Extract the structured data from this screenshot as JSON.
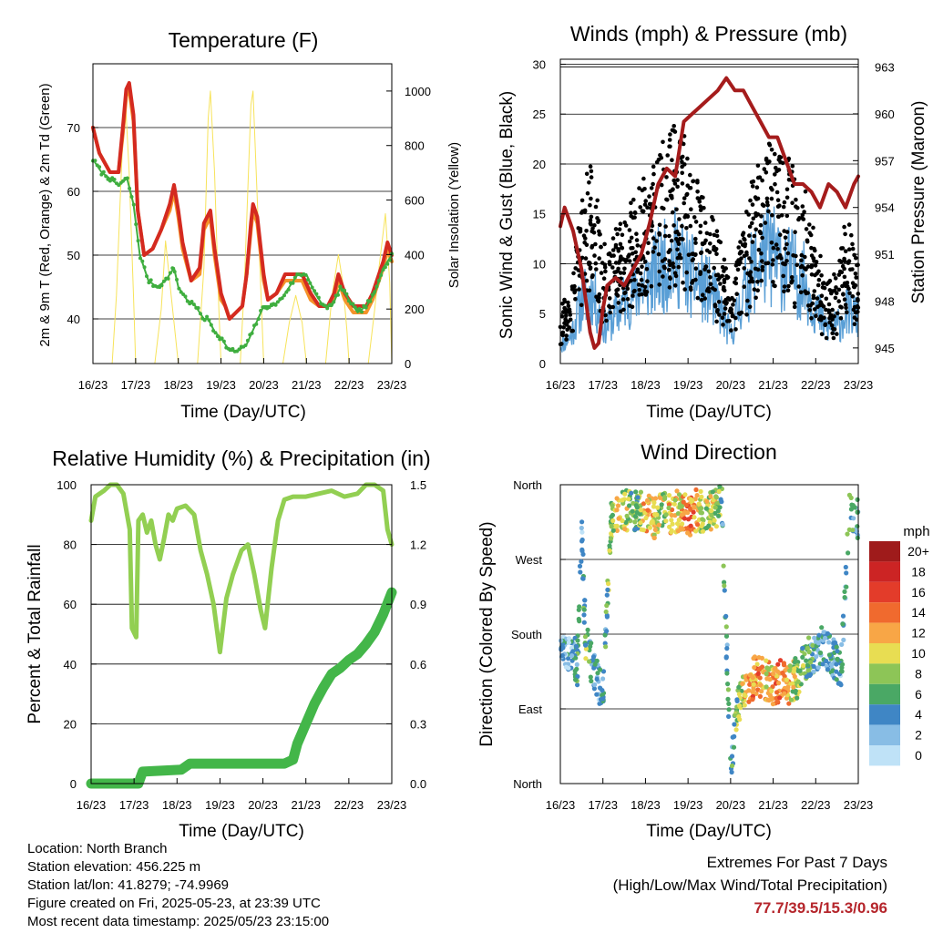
{
  "footer": {
    "location": "Location: North Branch",
    "elevation": "Station elevation: 456.225 m",
    "latlon": "Station lat/lon: 41.8279; -74.9969",
    "created": "Figure created on Fri, 2025-05-23, at 23:39 UTC",
    "recent": "Most recent data timestamp: 2025/05/23 23:15:00",
    "extremes_title": "Extremes For Past 7 Days",
    "extremes_sub": "(High/Low/Max Wind/Total Precipitation)",
    "extremes_value": "77.7/39.5/15.3/0.96"
  },
  "colors": {
    "temp2m": "#d42a20",
    "temp9m": "#f5922a",
    "dewpoint": "#3fae3f",
    "solar": "#f7e35a",
    "sonic_wind": "#5a9fd6",
    "gust": "#000000",
    "pressure": "#a51c1c",
    "rh": "#92cf52",
    "precip": "#43b649",
    "extremes": "#b5252b"
  },
  "chart_data": [
    {
      "type": "line",
      "title": "Temperature (F)",
      "xlabel": "Time (Day/UTC)",
      "ylabel": "2m & 9m T (Red, Orange) & 2m Td (Green)",
      "y2label": "Solar Insolation (Yellow)",
      "xticks": [
        "16/23",
        "17/23",
        "18/23",
        "19/23",
        "20/23",
        "21/23",
        "22/23",
        "23/23"
      ],
      "xlim": [
        0,
        7
      ],
      "ylim": [
        33,
        80
      ],
      "yticks": [
        40,
        50,
        60,
        70
      ],
      "y2lim": [
        0,
        1100
      ],
      "y2ticks": [
        0,
        200,
        400,
        600,
        800,
        1000
      ],
      "grid": true,
      "series": [
        {
          "name": "2m T",
          "axis": "left",
          "color": "#d42a20",
          "x": [
            0,
            0.15,
            0.4,
            0.6,
            0.7,
            0.78,
            0.85,
            0.95,
            1.05,
            1.2,
            1.4,
            1.6,
            1.8,
            1.9,
            2.0,
            2.1,
            2.3,
            2.5,
            2.6,
            2.75,
            2.85,
            3.0,
            3.1,
            3.2,
            3.35,
            3.5,
            3.6,
            3.7,
            3.75,
            3.85,
            4.0,
            4.1,
            4.3,
            4.5,
            4.7,
            4.9,
            5.1,
            5.3,
            5.5,
            5.65,
            5.75,
            5.9,
            6.1,
            6.3,
            6.4,
            6.55,
            6.7,
            6.8,
            6.9,
            7.0
          ],
          "y": [
            70,
            66,
            63,
            63,
            70,
            76,
            77,
            72,
            57,
            50,
            51,
            54,
            58,
            61,
            57,
            52,
            46,
            48,
            55,
            57,
            51,
            44,
            42,
            40,
            41,
            42,
            47,
            55,
            58,
            56,
            47,
            43,
            44,
            47,
            47,
            47,
            44,
            42,
            42,
            44,
            47,
            44,
            42,
            42,
            42,
            44,
            47,
            49,
            52,
            50
          ]
        },
        {
          "name": "9m T",
          "axis": "left",
          "color": "#f5922a",
          "x": [
            0,
            0.15,
            0.4,
            0.6,
            0.7,
            0.78,
            0.85,
            0.95,
            1.05,
            1.2,
            1.4,
            1.6,
            1.8,
            1.9,
            2.0,
            2.1,
            2.3,
            2.5,
            2.6,
            2.75,
            2.85,
            3.0,
            3.1,
            3.2,
            3.35,
            3.5,
            3.6,
            3.7,
            3.75,
            3.85,
            4.0,
            4.1,
            4.3,
            4.5,
            4.7,
            4.9,
            5.1,
            5.3,
            5.5,
            5.65,
            5.75,
            5.9,
            6.1,
            6.3,
            6.4,
            6.55,
            6.7,
            6.8,
            6.9,
            7.0
          ],
          "y": [
            70,
            66,
            63,
            63,
            69,
            75,
            76,
            71,
            57,
            50,
            51,
            54,
            57,
            60,
            56,
            51,
            46,
            47,
            54,
            56,
            50,
            43,
            42,
            40,
            41,
            42,
            47,
            54,
            57,
            55,
            46,
            43,
            44,
            46,
            46,
            46,
            43,
            42,
            42,
            43,
            46,
            43,
            41,
            41,
            41,
            43,
            46,
            48,
            51,
            49
          ]
        },
        {
          "name": "2m Td",
          "axis": "left",
          "color": "#3fae3f",
          "x": [
            0,
            0.2,
            0.4,
            0.6,
            0.8,
            0.95,
            1.1,
            1.3,
            1.5,
            1.7,
            1.9,
            2.0,
            2.2,
            2.4,
            2.6,
            2.7,
            2.85,
            3.0,
            3.2,
            3.4,
            3.6,
            3.8,
            4.0,
            4.2,
            4.4,
            4.6,
            4.8,
            5.0,
            5.2,
            5.4,
            5.6,
            5.8,
            6.0,
            6.2,
            6.4,
            6.6,
            6.8,
            7.0
          ],
          "y": [
            65,
            63,
            62,
            61,
            62,
            58,
            50,
            46,
            45,
            46,
            48,
            45,
            43,
            42,
            40,
            40,
            38,
            37,
            35,
            35,
            36,
            39,
            42,
            42,
            43,
            45,
            47,
            47,
            44,
            42,
            42,
            45,
            43,
            41,
            42,
            44,
            48,
            50
          ]
        },
        {
          "name": "Solar Insolation",
          "axis": "right",
          "color": "#f7e35a",
          "x": [
            0,
            0.45,
            0.55,
            0.65,
            0.75,
            0.85,
            0.95,
            1.0,
            1.45,
            1.6,
            1.7,
            1.8,
            1.9,
            2.0,
            2.45,
            2.6,
            2.7,
            2.75,
            2.85,
            2.95,
            3.0,
            3.45,
            3.55,
            3.7,
            3.75,
            3.85,
            3.95,
            4.0,
            4.45,
            4.6,
            4.75,
            4.9,
            5.0,
            5.45,
            5.6,
            5.75,
            5.85,
            5.95,
            6.0,
            6.45,
            6.6,
            6.7,
            6.85,
            6.95,
            7.0
          ],
          "y": [
            0,
            0,
            250,
            650,
            1000,
            700,
            250,
            0,
            0,
            200,
            450,
            300,
            150,
            0,
            0,
            350,
            900,
            1000,
            700,
            200,
            0,
            0,
            300,
            950,
            1000,
            600,
            200,
            0,
            0,
            150,
            250,
            150,
            0,
            0,
            250,
            400,
            300,
            120,
            0,
            0,
            200,
            350,
            550,
            300,
            0
          ]
        }
      ]
    },
    {
      "type": "scatter",
      "title": "Winds (mph) & Pressure (mb)",
      "xlabel": "Time (Day/UTC)",
      "ylabel": "Sonic Wind & Gust (Blue, Black)",
      "y2label": "Station Pressure (Maroon)",
      "xticks": [
        "16/23",
        "17/23",
        "18/23",
        "19/23",
        "20/23",
        "21/23",
        "22/23",
        "23/23"
      ],
      "xlim": [
        0,
        7
      ],
      "ylim": [
        0,
        30.5
      ],
      "yticks": [
        0,
        5,
        10,
        15,
        20,
        25,
        30
      ],
      "y2lim": [
        944.0,
        963.5
      ],
      "y2ticks": [
        945,
        948,
        951,
        954,
        957,
        960,
        963
      ],
      "grid": true,
      "series": [
        {
          "name": "Gust",
          "axis": "left",
          "color": "#000000",
          "x": [
            0,
            0.25,
            0.5,
            0.75,
            1.0,
            1.25,
            1.5,
            1.75,
            2.0,
            2.25,
            2.5,
            2.75,
            3.0,
            3.25,
            3.5,
            3.75,
            4.0,
            4.25,
            4.5,
            4.75,
            5.0,
            5.25,
            5.5,
            5.75,
            6.0,
            6.25,
            6.5,
            6.75,
            7.0
          ],
          "y": [
            3,
            6,
            14,
            17,
            9,
            10,
            12,
            14,
            15,
            17,
            19,
            21,
            17,
            15,
            12,
            10,
            5,
            10,
            15,
            17,
            19,
            18,
            16,
            14,
            9,
            6,
            7,
            12,
            8
          ]
        },
        {
          "name": "Sonic Wind",
          "axis": "left",
          "color": "#5a9fd6",
          "x": [
            0,
            0.25,
            0.5,
            0.75,
            1.0,
            1.25,
            1.5,
            1.75,
            2.0,
            2.25,
            2.5,
            2.75,
            3.0,
            3.25,
            3.5,
            3.75,
            4.0,
            4.25,
            4.5,
            4.75,
            5.0,
            5.25,
            5.5,
            5.75,
            6.0,
            6.25,
            6.5,
            6.75,
            7.0
          ],
          "y": [
            2,
            3,
            7,
            8,
            4,
            5,
            7,
            8,
            9,
            10,
            11,
            12,
            10,
            9,
            8,
            6,
            3,
            7,
            10,
            12,
            12,
            11,
            10,
            9,
            6,
            4,
            4,
            6,
            5
          ]
        },
        {
          "name": "Station Pressure",
          "axis": "right",
          "color": "#a51c1c",
          "x": [
            0,
            0.1,
            0.3,
            0.5,
            0.7,
            0.8,
            0.9,
            1.0,
            1.1,
            1.3,
            1.5,
            1.7,
            1.9,
            2.1,
            2.3,
            2.5,
            2.7,
            2.9,
            3.1,
            3.3,
            3.5,
            3.7,
            3.9,
            4.1,
            4.3,
            4.5,
            4.7,
            4.9,
            5.1,
            5.3,
            5.5,
            5.7,
            5.9,
            6.1,
            6.3,
            6.5,
            6.7,
            6.9,
            7.0
          ],
          "y": [
            952.8,
            954.0,
            952.5,
            950.0,
            946.0,
            945.0,
            945.3,
            947.5,
            949.0,
            949.5,
            949.0,
            950.0,
            951.0,
            953.0,
            955.5,
            956.5,
            956.0,
            959.5,
            960.0,
            960.5,
            961.0,
            961.5,
            962.3,
            961.5,
            961.5,
            960.5,
            959.5,
            958.5,
            958.5,
            957.0,
            955.5,
            955.5,
            955.0,
            954.0,
            955.5,
            955.0,
            954.0,
            955.5,
            956.0
          ]
        }
      ]
    },
    {
      "type": "line",
      "title": "Relative Humidity (%) & Precipitation (in)",
      "xlabel": "Time (Day/UTC)",
      "ylabel": "Percent & Total Rainfall",
      "xticks": [
        "16/23",
        "17/23",
        "18/23",
        "19/23",
        "20/23",
        "21/23",
        "22/23",
        "23/23"
      ],
      "xlim": [
        0,
        7
      ],
      "ylim": [
        0,
        100
      ],
      "yticks": [
        0,
        20,
        40,
        60,
        80,
        100
      ],
      "y2lim": [
        0,
        1.5
      ],
      "y2ticks": [
        "0.0",
        "0.3",
        "0.6",
        "0.9",
        "1.2",
        "1.5"
      ],
      "grid": true,
      "series": [
        {
          "name": "Relative Humidity",
          "axis": "left",
          "color": "#92cf52",
          "x": [
            0,
            0.1,
            0.3,
            0.45,
            0.6,
            0.75,
            0.9,
            0.95,
            1.05,
            1.1,
            1.2,
            1.3,
            1.4,
            1.5,
            1.6,
            1.7,
            1.8,
            1.9,
            2.0,
            2.2,
            2.4,
            2.55,
            2.7,
            2.85,
            3.0,
            3.15,
            3.3,
            3.5,
            3.65,
            3.8,
            3.95,
            4.05,
            4.2,
            4.35,
            4.5,
            4.7,
            5.0,
            5.3,
            5.6,
            5.9,
            6.2,
            6.4,
            6.6,
            6.8,
            6.9,
            7.0
          ],
          "y": [
            88,
            96,
            98,
            100,
            100,
            97,
            85,
            52,
            49,
            88,
            90,
            84,
            88,
            80,
            75,
            82,
            90,
            88,
            92,
            93,
            90,
            78,
            70,
            60,
            44,
            62,
            70,
            78,
            80,
            70,
            58,
            52,
            72,
            88,
            95,
            96,
            96,
            97,
            98,
            96,
            97,
            100,
            100,
            98,
            85,
            80
          ]
        },
        {
          "name": "Total Precipitation",
          "axis": "right",
          "color": "#43b649",
          "x": [
            0,
            1.1,
            1.2,
            2.1,
            2.3,
            4.5,
            4.7,
            4.8,
            5.0,
            5.2,
            5.4,
            5.6,
            5.8,
            6.0,
            6.2,
            6.4,
            6.6,
            6.8,
            7.0
          ],
          "y": [
            0,
            0,
            0.06,
            0.07,
            0.1,
            0.1,
            0.12,
            0.2,
            0.3,
            0.4,
            0.48,
            0.55,
            0.58,
            0.62,
            0.65,
            0.7,
            0.76,
            0.85,
            0.96
          ]
        }
      ]
    },
    {
      "type": "scatter",
      "title": "Wind Direction",
      "xlabel": "Time (Day/UTC)",
      "ylabel": "Direction (Colored By Speed)",
      "xticks": [
        "16/23",
        "17/23",
        "18/23",
        "19/23",
        "20/23",
        "21/23",
        "22/23",
        "23/23"
      ],
      "xlim": [
        0,
        7
      ],
      "ylim": [
        0,
        360
      ],
      "yticks": [
        "North",
        "East",
        "South",
        "West",
        "North"
      ],
      "grid": true,
      "legend": {
        "title": "mph",
        "placement": "right",
        "labels": [
          "20+",
          "18",
          "16",
          "14",
          "12",
          "10",
          "8",
          "6",
          "4",
          "2",
          "0"
        ],
        "colors": [
          "#9f1b1b",
          "#cc2424",
          "#e33c2a",
          "#f06a2e",
          "#f8a646",
          "#e8dd52",
          "#8dc557",
          "#4aa865",
          "#3f86c5",
          "#88bde5",
          "#bfe2f7"
        ]
      },
      "series": [
        {
          "name": "Wind Direction",
          "x": [
            0.1,
            0.2,
            0.3,
            0.4,
            0.5,
            0.6,
            0.7,
            0.8,
            0.9,
            1.0,
            1.2,
            1.4,
            1.6,
            1.8,
            2.0,
            2.2,
            2.4,
            2.6,
            2.8,
            3.0,
            3.2,
            3.4,
            3.6,
            3.8,
            4.0,
            4.2,
            4.4,
            4.6,
            4.8,
            5.0,
            5.2,
            5.4,
            5.6,
            5.8,
            6.0,
            6.2,
            6.4,
            6.6,
            6.8,
            7.0
          ],
          "y": [
            170,
            150,
            160,
            140,
            300,
            170,
            150,
            130,
            120,
            110,
            320,
            325,
            330,
            330,
            325,
            320,
            330,
            325,
            330,
            320,
            330,
            325,
            330,
            335,
            20,
            100,
            120,
            130,
            125,
            120,
            125,
            120,
            130,
            150,
            160,
            170,
            150,
            140,
            330,
            320
          ],
          "speed": [
            3,
            2,
            4,
            6,
            2,
            8,
            5,
            4,
            3,
            4,
            8,
            10,
            8,
            6,
            12,
            10,
            8,
            12,
            10,
            14,
            12,
            8,
            10,
            6,
            5,
            8,
            12,
            14,
            10,
            12,
            14,
            10,
            8,
            6,
            4,
            3,
            4,
            3,
            6,
            4
          ]
        }
      ]
    }
  ]
}
